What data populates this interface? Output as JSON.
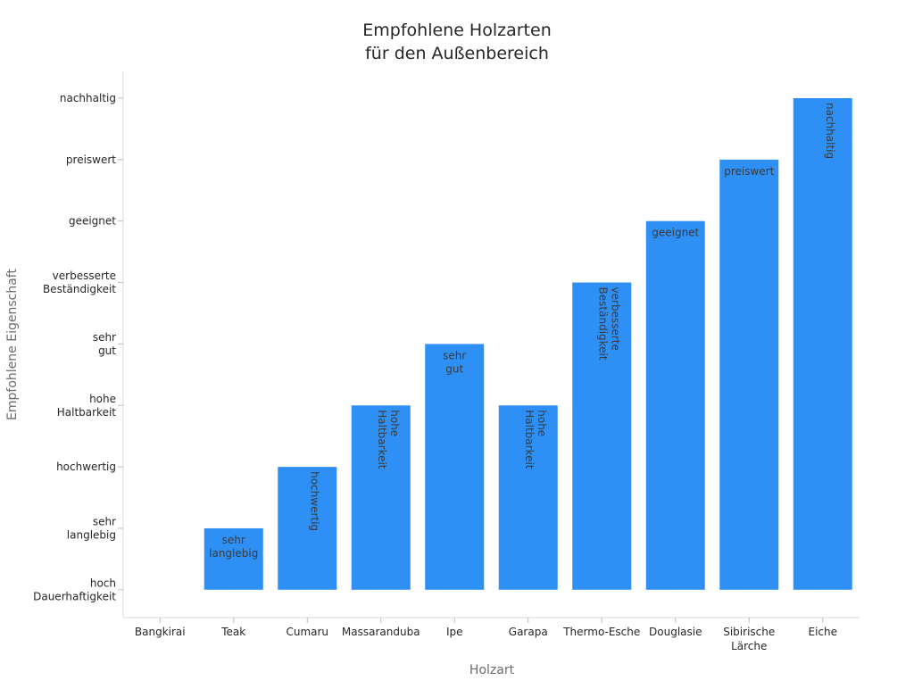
{
  "chart_data": {
    "type": "bar",
    "title_lines": [
      "Empfohlene Holzarten",
      "für den Außenbereich"
    ],
    "xlabel": "Holzart",
    "ylabel": "Empfohlene Eigenschaft",
    "y_ticks": [
      [
        "hoch",
        "Dauerhaftigkeit"
      ],
      [
        "sehr",
        "langlebig"
      ],
      [
        "hochwertig"
      ],
      [
        "hohe",
        "Haltbarkeit"
      ],
      [
        "sehr",
        "gut"
      ],
      [
        "verbesserte",
        "Beständigkeit"
      ],
      [
        "geeignet"
      ],
      [
        "preiswert"
      ],
      [
        "nachhaltig"
      ]
    ],
    "categories": [
      [
        "Bangkirai"
      ],
      [
        "Teak"
      ],
      [
        "Cumaru"
      ],
      [
        "Massaranduba"
      ],
      [
        "Ipe"
      ],
      [
        "Garapa"
      ],
      [
        "Thermo-Esche"
      ],
      [
        "Douglasie"
      ],
      [
        "Sibirische",
        "Lärche"
      ],
      [
        "Eiche"
      ]
    ],
    "values": [
      0,
      1,
      2,
      3,
      4,
      3,
      5,
      6,
      7,
      8
    ],
    "bar_labels": [
      null,
      {
        "lines": [
          "sehr",
          "langlebig"
        ],
        "rotated": false
      },
      {
        "lines": [
          "hochwertig"
        ],
        "rotated": true
      },
      {
        "lines": [
          "hohe",
          "Haltbarkeit"
        ],
        "rotated": true
      },
      {
        "lines": [
          "sehr",
          "gut"
        ],
        "rotated": false
      },
      {
        "lines": [
          "hohe",
          "Haltbarkeit"
        ],
        "rotated": true
      },
      {
        "lines": [
          "verbesserte",
          "Beständigkeit"
        ],
        "rotated": true
      },
      {
        "lines": [
          "geeignet"
        ],
        "rotated": false
      },
      {
        "lines": [
          "preiswert"
        ],
        "rotated": false
      },
      {
        "lines": [
          "nachhaltig"
        ],
        "rotated": true
      }
    ],
    "bar_color": "#2e90f5",
    "ylim": [
      -0.4,
      8.5
    ],
    "grid": false,
    "legend": "none"
  }
}
